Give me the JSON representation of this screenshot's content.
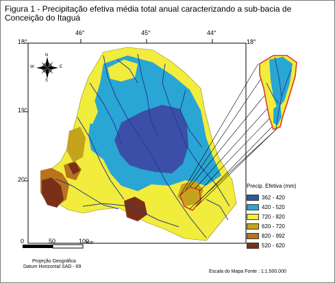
{
  "title": "Figura 1 - Precipitação efetiva média total anual caracterizando a sub-bacia de Conceição do Itaguá",
  "longitudes": [
    "46°",
    "45°",
    "44°"
  ],
  "latitudes_left": [
    "18°",
    "19°",
    "20°"
  ],
  "latitude_right": "18°",
  "compass": {
    "n": "N",
    "s": "S",
    "e": "E",
    "w": "W"
  },
  "legend": {
    "title": "Precip. Efetiva (mm)",
    "items": [
      {
        "label": "362 - 420",
        "color": "#2a5aa0"
      },
      {
        "label": "420 - 520",
        "color": "#2aa6d4"
      },
      {
        "label": "720 - 820",
        "color": "#f2ec3c"
      },
      {
        "label": "620 - 720",
        "color": "#c6a31c"
      },
      {
        "label": "820 - 992",
        "color": "#b8731e"
      },
      {
        "label": "520 - 620",
        "color": "#7a3018"
      }
    ]
  },
  "scale": {
    "t0": "0",
    "t50": "50",
    "t100": "100",
    "unit": "Km"
  },
  "projection": "Projeção Geográfica",
  "datum": "Datum Horizontal SAD - 69",
  "source": "Escala do Mapa Fonte : 1:1.500.000",
  "colors": {
    "frame": "#000000",
    "river": "#1f3c8c",
    "highlight": "#d83a2a",
    "dark_blue": "#3b4fa8"
  }
}
